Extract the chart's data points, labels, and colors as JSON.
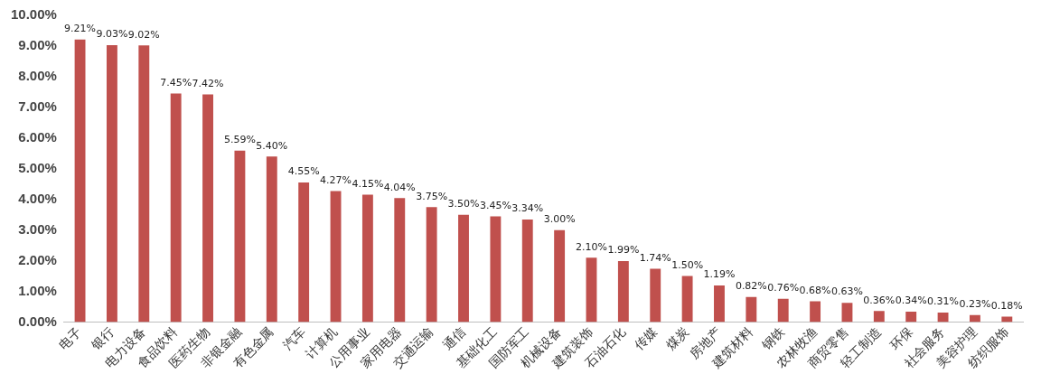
{
  "chart_data": {
    "type": "bar",
    "categories": [
      "电子",
      "银行",
      "电力设备",
      "食品饮料",
      "医药生物",
      "非银金融",
      "有色金属",
      "汽车",
      "计算机",
      "公用事业",
      "家用电器",
      "交通运输",
      "通信",
      "基础化工",
      "国防军工",
      "机械设备",
      "建筑装饰",
      "石油石化",
      "传媒",
      "煤炭",
      "房地产",
      "建筑材料",
      "钢铁",
      "农林牧渔",
      "商贸零售",
      "轻工制造",
      "环保",
      "社会服务",
      "美容护理",
      "纺织服饰"
    ],
    "values": [
      9.21,
      9.03,
      9.02,
      7.45,
      7.42,
      5.59,
      5.4,
      4.55,
      4.27,
      4.15,
      4.04,
      3.75,
      3.5,
      3.45,
      3.34,
      3.0,
      2.1,
      1.99,
      1.74,
      1.5,
      1.19,
      0.82,
      0.76,
      0.68,
      0.63,
      0.36,
      0.34,
      0.31,
      0.23,
      0.18
    ],
    "value_labels": [
      "9.21%",
      "9.03%",
      "9.02%",
      "7.45%",
      "7.42%",
      "5.59%",
      "5.40%",
      "4.55%",
      "4.27%",
      "4.15%",
      "4.04%",
      "3.75%",
      "3.50%",
      "3.45%",
      "3.34%",
      "3.00%",
      "2.10%",
      "1.99%",
      "1.74%",
      "1.50%",
      "1.19%",
      "0.82%",
      "0.76%",
      "0.68%",
      "0.63%",
      "0.36%",
      "0.34%",
      "0.31%",
      "0.23%",
      "0.18%"
    ],
    "color": "#c0504d",
    "ylim": [
      0,
      10
    ],
    "yticks": [
      {
        "value": 0,
        "label": "0.00%"
      },
      {
        "value": 1,
        "label": "1.00%"
      },
      {
        "value": 2,
        "label": "2.00%"
      },
      {
        "value": 3,
        "label": "3.00%"
      },
      {
        "value": 4,
        "label": "4.00%"
      },
      {
        "value": 5,
        "label": "5.00%"
      },
      {
        "value": 6,
        "label": "6.00%"
      },
      {
        "value": 7,
        "label": "7.00%"
      },
      {
        "value": 8,
        "label": "8.00%"
      },
      {
        "value": 9,
        "label": "9.00%"
      },
      {
        "value": 10,
        "label": "10.00%"
      }
    ],
    "grid": false,
    "legend": false
  }
}
